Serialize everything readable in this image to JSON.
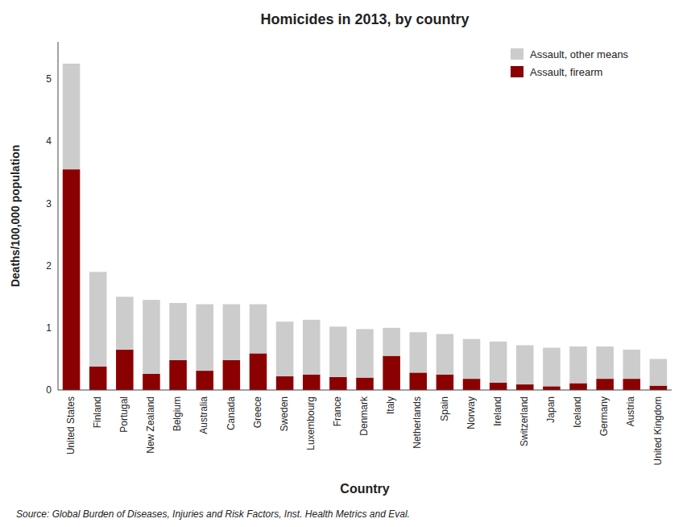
{
  "chart_data": {
    "type": "bar",
    "stacked": true,
    "title": "Homicides in 2013, by country",
    "xlabel": "Country",
    "ylabel": "Deaths/100,000 population",
    "annotations": [
      "Source: Global Burden of Diseases, Injuries and Risk Factors, Inst. Health Metrics and Eval."
    ],
    "categories": [
      "United States",
      "Finland",
      "Portugal",
      "New Zealand",
      "Belgium",
      "Australia",
      "Canada",
      "Greece",
      "Sweden",
      "Luxembourg",
      "France",
      "Denmark",
      "Italy",
      "Netherlands",
      "Spain",
      "Norway",
      "Ireland",
      "Switzerland",
      "Japan",
      "Iceland",
      "Germany",
      "Austria",
      "United Kingdom"
    ],
    "series": [
      {
        "name": "Assault, firearm",
        "color": "#8B0000",
        "values": [
          3.55,
          0.38,
          0.65,
          0.26,
          0.48,
          0.31,
          0.48,
          0.59,
          0.22,
          0.25,
          0.21,
          0.2,
          0.55,
          0.28,
          0.25,
          0.18,
          0.12,
          0.09,
          0.06,
          0.11,
          0.18,
          0.18,
          0.07
        ]
      },
      {
        "name": "Assault, other means",
        "color": "#cccccc",
        "values": [
          1.7,
          1.52,
          0.85,
          1.19,
          0.92,
          1.07,
          0.9,
          0.79,
          0.88,
          0.88,
          0.81,
          0.78,
          0.45,
          0.65,
          0.65,
          0.64,
          0.66,
          0.63,
          0.62,
          0.59,
          0.52,
          0.47,
          0.43
        ]
      }
    ],
    "ylim": [
      0,
      5.6
    ],
    "yticks": [
      0,
      1,
      2,
      3,
      4,
      5
    ],
    "grid": false,
    "legend": "top-right"
  }
}
